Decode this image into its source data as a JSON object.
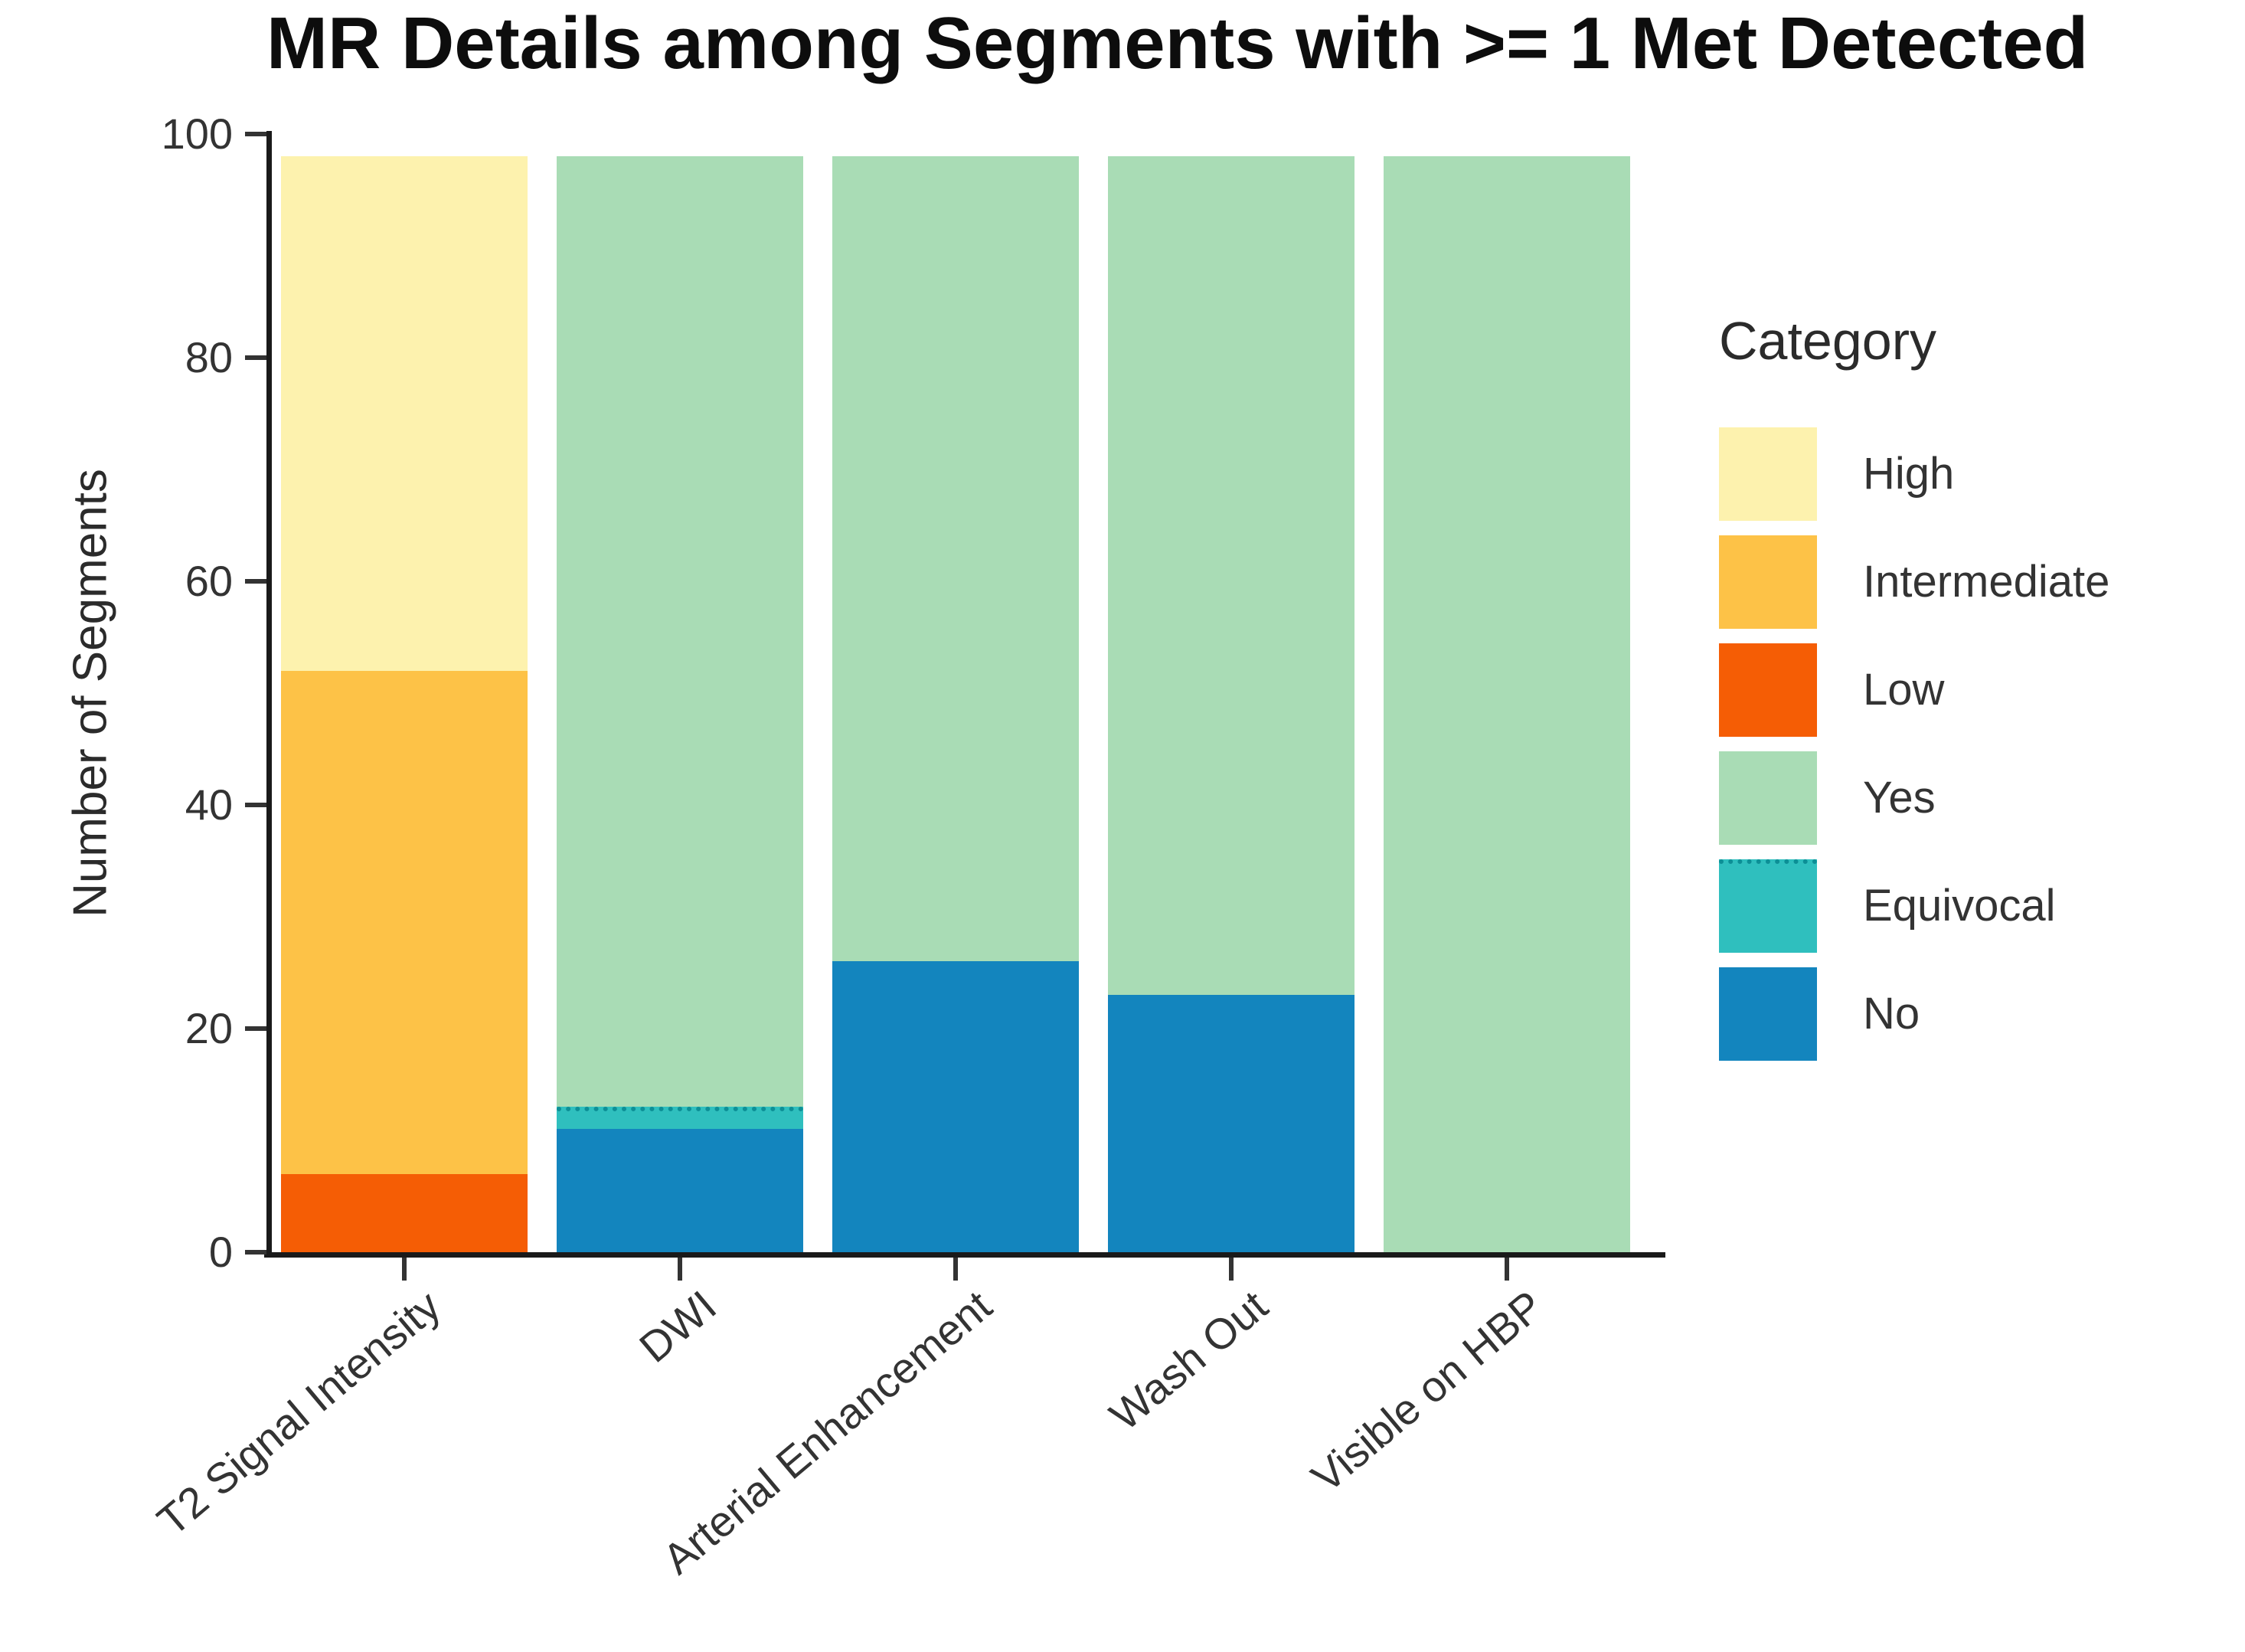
{
  "chart_data": {
    "type": "bar",
    "stacked": true,
    "title": "MR Details among Segments with >= 1 Met Detected",
    "ylabel": "Number of Segments",
    "xlabel": "",
    "ylim": [
      0,
      100
    ],
    "yticks": [
      0,
      20,
      40,
      60,
      80,
      100
    ],
    "grid": false,
    "categories": [
      "T2 Signal Intensity",
      "DWI",
      "Arterial Enhancement",
      "Wash Out",
      "Visible on HBP"
    ],
    "series": [
      {
        "name": "High",
        "color": "#FDF2AE",
        "values": [
          46,
          0,
          0,
          0,
          0
        ]
      },
      {
        "name": "Intermediate",
        "color": "#FDC247",
        "values": [
          45,
          0,
          0,
          0,
          0
        ]
      },
      {
        "name": "Low",
        "color": "#F55D05",
        "values": [
          7,
          0,
          0,
          0,
          0
        ]
      },
      {
        "name": "Yes",
        "color": "#A9DCB5",
        "values": [
          0,
          85,
          72,
          75,
          98
        ]
      },
      {
        "name": "Equivocal",
        "color": "#2FBFBE",
        "values": [
          0,
          2,
          0,
          0,
          0
        ]
      },
      {
        "name": "No",
        "color": "#1385BE",
        "values": [
          0,
          11,
          26,
          23,
          0
        ]
      }
    ],
    "stack_order": [
      "No",
      "Equivocal",
      "Low",
      "Intermediate",
      "High",
      "Yes"
    ],
    "legend": {
      "title": "Category",
      "position": "right",
      "entries": [
        "High",
        "Intermediate",
        "Low",
        "Yes",
        "Equivocal",
        "No"
      ]
    },
    "bar_totals": [
      98,
      98,
      98,
      98,
      98
    ]
  }
}
